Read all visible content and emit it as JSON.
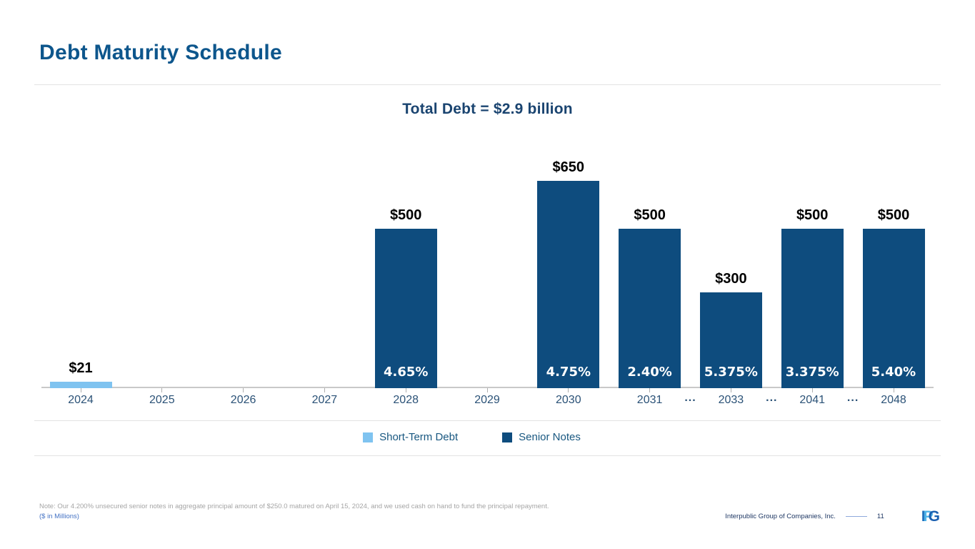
{
  "slide": {
    "title": "Debt Maturity Schedule"
  },
  "chart_data": {
    "type": "bar",
    "title": "Total Debt = $2.9 billion",
    "value_unit": "$ in Millions",
    "categories": [
      "2024",
      "2025",
      "2026",
      "2027",
      "2028",
      "2029",
      "2030",
      "2031",
      "2033",
      "2041",
      "2048"
    ],
    "ellipsis_after": [
      7,
      8,
      9
    ],
    "ellipsis_text": "...",
    "ylim": [
      0,
      700
    ],
    "grid": false,
    "legend_position": "bottom",
    "series_colors": {
      "short_term": "#7FC3F0",
      "senior": "#0E4C7E"
    },
    "bars": [
      {
        "index": 0,
        "category": "2024",
        "value": 21,
        "value_label": "$21",
        "rate_label": "",
        "series": "short_term",
        "series_name": "Short-Term Debt"
      },
      {
        "index": 4,
        "category": "2028",
        "value": 500,
        "value_label": "$500",
        "rate_label": "4.65%",
        "series": "senior",
        "series_name": "Senior Notes"
      },
      {
        "index": 6,
        "category": "2030",
        "value": 650,
        "value_label": "$650",
        "rate_label": "4.75%",
        "series": "senior",
        "series_name": "Senior Notes"
      },
      {
        "index": 7,
        "category": "2031",
        "value": 500,
        "value_label": "$500",
        "rate_label": "2.40%",
        "series": "senior",
        "series_name": "Senior Notes"
      },
      {
        "index": 8,
        "category": "2033",
        "value": 300,
        "value_label": "$300",
        "rate_label": "5.375%",
        "series": "senior",
        "series_name": "Senior Notes"
      },
      {
        "index": 9,
        "category": "2041",
        "value": 500,
        "value_label": "$500",
        "rate_label": "3.375%",
        "series": "senior",
        "series_name": "Senior Notes"
      },
      {
        "index": 10,
        "category": "2048",
        "value": 500,
        "value_label": "$500",
        "rate_label": "5.40%",
        "series": "senior",
        "series_name": "Senior Notes"
      }
    ]
  },
  "legend": {
    "items": [
      {
        "label": "Short-Term Debt",
        "color": "#7FC3F0"
      },
      {
        "label": "Senior Notes",
        "color": "#0E4C7E"
      }
    ]
  },
  "footer": {
    "note": "Note: Our 4.200% unsecured senior notes in aggregate principal amount of $250.0 matured on April 15, 2024, and we used cash on hand to fund the principal repayment.",
    "units_label": "($ in Millions)",
    "company": "Interpublic Group of Companies, Inc.",
    "page_number": "11",
    "logo": {
      "i": "I",
      "p": "P",
      "g": "G"
    }
  },
  "colors": {
    "title_blue": "#0D568C",
    "chart_title_navy": "#1A4470",
    "axis_label": "#2B5277",
    "short_term_bar": "#7FC3F0",
    "senior_notes_bar": "#0E4C7E",
    "axis_line_gray": "#C9C9C9",
    "note_gray": "#A5A5A5",
    "units_blue": "#4472C4",
    "footer_navy": "#1F3864"
  }
}
